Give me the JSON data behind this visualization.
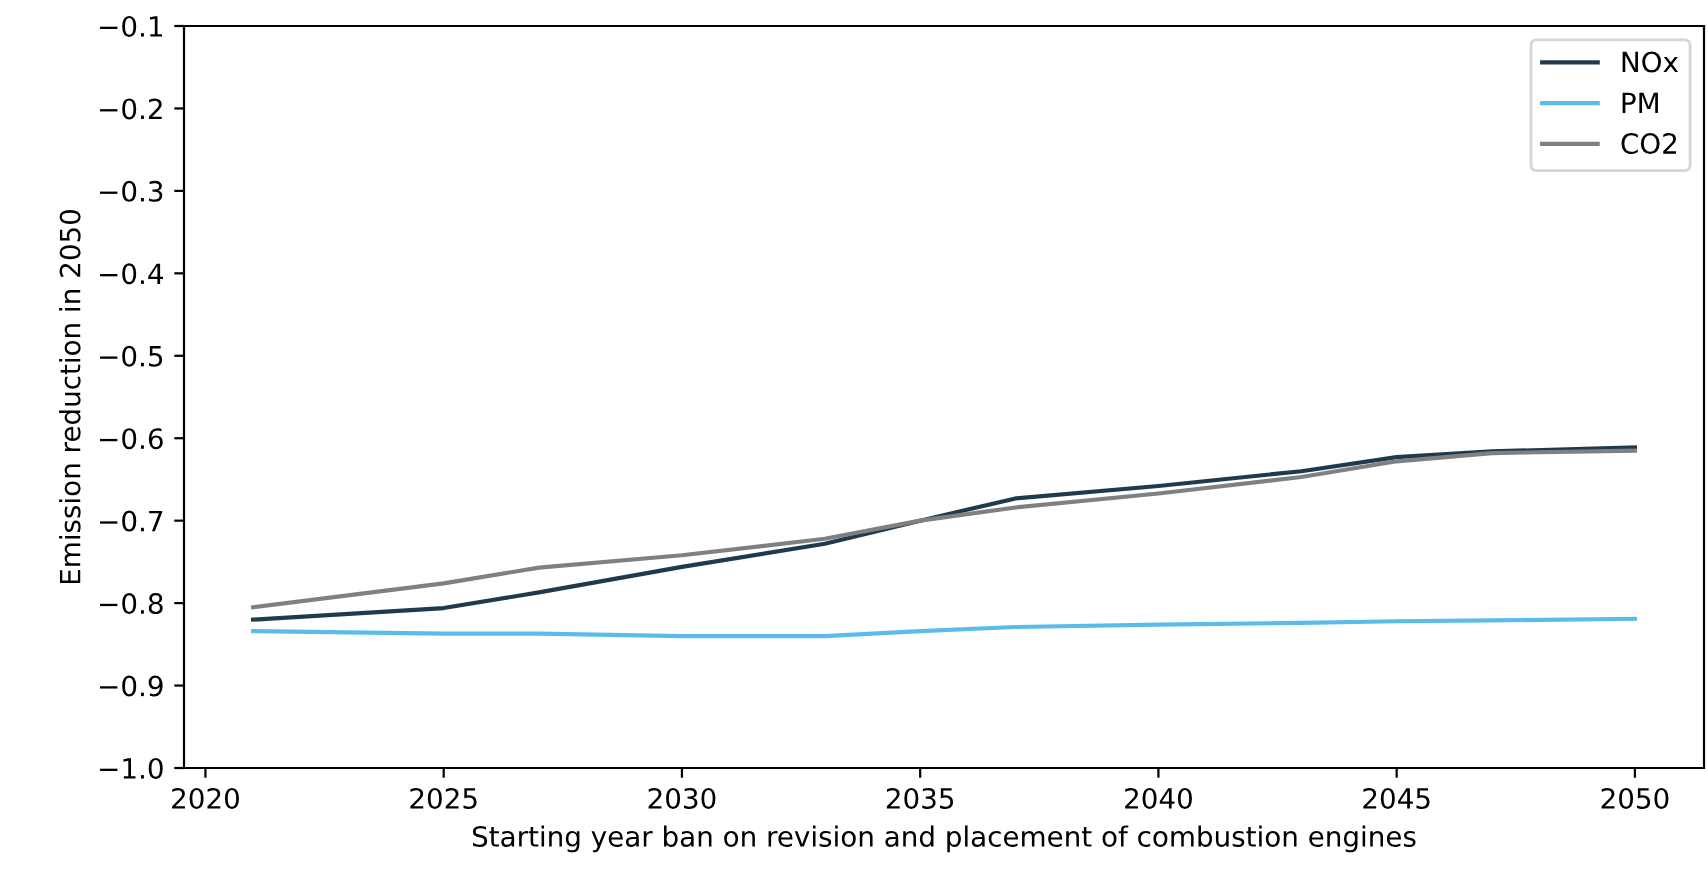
{
  "chart_data": {
    "type": "line",
    "xlabel": "Starting year ban on revision and placement of combustion engines",
    "ylabel": "Emission reduction in 2050",
    "x": [
      2021,
      2025,
      2027,
      2030,
      2033,
      2035,
      2037,
      2040,
      2043,
      2045,
      2047,
      2050
    ],
    "series": [
      {
        "name": "NOx",
        "color": "#1f3a4d",
        "values": [
          -0.82,
          -0.806,
          -0.787,
          -0.756,
          -0.728,
          -0.7,
          -0.673,
          -0.658,
          -0.64,
          -0.623,
          -0.616,
          -0.611
        ]
      },
      {
        "name": "PM",
        "color": "#5bbcea",
        "values": [
          -0.834,
          -0.837,
          -0.837,
          -0.84,
          -0.84,
          -0.834,
          -0.829,
          -0.826,
          -0.824,
          -0.822,
          -0.821,
          -0.819
        ]
      },
      {
        "name": "CO2",
        "color": "#808080",
        "values": [
          -0.805,
          -0.776,
          -0.757,
          -0.742,
          -0.722,
          -0.7,
          -0.684,
          -0.667,
          -0.647,
          -0.628,
          -0.618,
          -0.615
        ]
      }
    ],
    "xlim": [
      2019.55,
      2051.45
    ],
    "ylim": [
      -1.0,
      -0.1
    ],
    "xticks": [
      2020,
      2025,
      2030,
      2035,
      2040,
      2045,
      2050
    ],
    "yticks": [
      {
        "value": -1,
        "label": "−1.0"
      },
      -0.9,
      -0.8,
      -0.7,
      -0.6,
      -0.5,
      -0.4,
      -0.3,
      -0.2,
      -0.1
    ],
    "grid": false,
    "legend": "top right",
    "marker": "none",
    "line_style": "solid"
  }
}
